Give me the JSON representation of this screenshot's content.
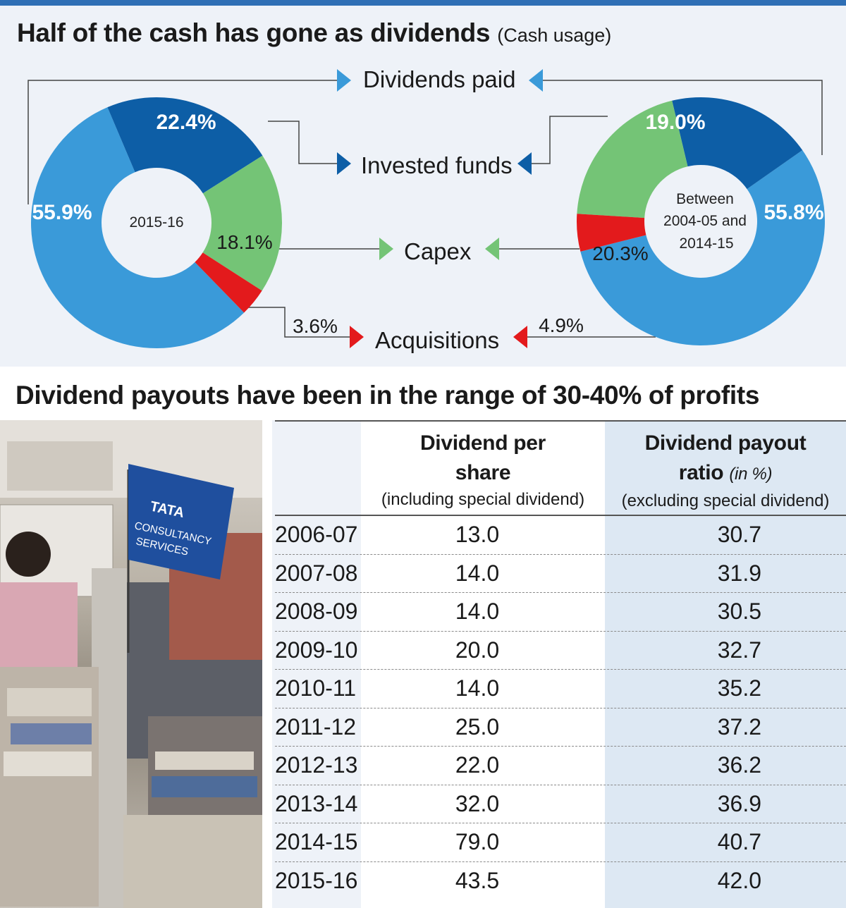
{
  "colors": {
    "dividends": "#3a9ad9",
    "invested": "#0d5ea6",
    "capex": "#74c476",
    "acquisitions": "#e31a1c",
    "panel_bg": "#eef2f8",
    "accent_rule": "#2f6fb5"
  },
  "header1": {
    "title": "Half of the cash has gone as dividends",
    "subtitle": "(Cash usage)"
  },
  "flow_labels": {
    "dividends": "Dividends paid",
    "invested": "Invested funds",
    "capex": "Capex",
    "acquisitions": "Acquisitions"
  },
  "chart_data": [
    {
      "type": "pie",
      "donut": true,
      "center_label": "2015-16",
      "categories": [
        "Dividends paid",
        "Invested funds",
        "Capex",
        "Acquisitions"
      ],
      "values": [
        55.9,
        22.4,
        18.1,
        3.6
      ],
      "labels": [
        "55.9%",
        "22.4%",
        "18.1%",
        "3.6%"
      ]
    },
    {
      "type": "pie",
      "donut": true,
      "center_label": [
        "Between",
        "2004-05 and",
        "2014-15"
      ],
      "categories": [
        "Dividends paid",
        "Invested funds",
        "Capex",
        "Acquisitions"
      ],
      "values": [
        55.8,
        19.0,
        20.3,
        4.9
      ],
      "labels": [
        "55.8%",
        "19.0%",
        "20.3%",
        "4.9%"
      ]
    },
    {
      "type": "table",
      "title": "Dividend payouts have been in the range of 30-40% of profits",
      "columns": [
        {
          "title": "Dividend per share",
          "note": "(including special dividend)"
        },
        {
          "title": "Dividend payout ratio",
          "unit": "(in %)",
          "note": "(excluding special dividend)"
        }
      ],
      "rows": [
        {
          "year": "2006-07",
          "dps": "13.0",
          "ratio": "30.7"
        },
        {
          "year": "2007-08",
          "dps": "14.0",
          "ratio": "31.9"
        },
        {
          "year": "2008-09",
          "dps": "14.0",
          "ratio": "30.5"
        },
        {
          "year": "2009-10",
          "dps": "20.0",
          "ratio": "32.7"
        },
        {
          "year": "2010-11",
          "dps": "14.0",
          "ratio": "35.2"
        },
        {
          "year": "2011-12",
          "dps": "25.0",
          "ratio": "37.2"
        },
        {
          "year": "2012-13",
          "dps": "22.0",
          "ratio": "36.2"
        },
        {
          "year": "2013-14",
          "dps": "32.0",
          "ratio": "36.9"
        },
        {
          "year": "2014-15",
          "dps": "79.0",
          "ratio": "40.7"
        },
        {
          "year": "2015-16",
          "dps": "43.5",
          "ratio": "42.0"
        }
      ]
    }
  ],
  "photo": {
    "flag_text": [
      "TATA",
      "CONSULTANCY",
      "SERVICES"
    ]
  }
}
